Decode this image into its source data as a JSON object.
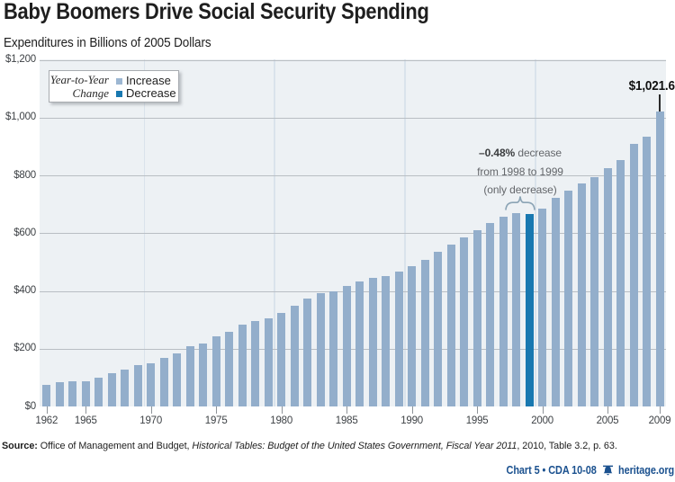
{
  "header": {
    "title": "Baby Boomers Drive Social Security Spending",
    "subtitle": "Expenditures in Billions of 2005 Dollars"
  },
  "legend": {
    "title_line1": "Year-to-Year",
    "title_line2": "Change",
    "items": [
      {
        "label": "Increase",
        "color": "#9db7d2"
      },
      {
        "label": "Decrease",
        "color": "#1878b0"
      }
    ]
  },
  "annotation": {
    "bold_part": "–0.48%",
    "line1_rest": " decrease",
    "line2": "from 1998 to 1999",
    "line3": "(only decrease)"
  },
  "peak_callout": {
    "label": "$1,021.6",
    "year": 2009
  },
  "source": {
    "prefix": "Source:",
    "normal1": " Office of Management and Budget, ",
    "italic": "Historical Tables: Budget of the United States Government, Fiscal Year 2011",
    "normal2": ", 2010, Table 3.2, p. 63."
  },
  "footer": {
    "chart_number": "Chart 5 • CDA 10-08",
    "site": "heritage.org",
    "logo": "liberty-bell",
    "accent_color": "#1b518f"
  },
  "chart_data": {
    "type": "bar",
    "title": "Baby Boomers Drive Social Security Spending",
    "ylabel": "Expenditures in Billions of 2005 Dollars",
    "ylim": [
      0,
      1200
    ],
    "y_ticks": [
      {
        "value": 1200,
        "label": "$1,200"
      },
      {
        "value": 1000,
        "label": "$1,000"
      },
      {
        "value": 800,
        "label": "$800"
      },
      {
        "value": 600,
        "label": "$600"
      },
      {
        "value": 400,
        "label": "$400"
      },
      {
        "value": 200,
        "label": "$200"
      },
      {
        "value": 0,
        "label": "$0"
      }
    ],
    "x_ticks": [
      1962,
      1965,
      1970,
      1975,
      1980,
      1985,
      1990,
      1995,
      2000,
      2005,
      2009
    ],
    "decade_gridlines_after": [
      1969,
      1979,
      1989,
      1999
    ],
    "decrease_year": 1999,
    "bar_colors": {
      "increase": "#93aecb",
      "decrease": "#1878b0"
    },
    "categories": [
      1962,
      1963,
      1964,
      1965,
      1966,
      1967,
      1968,
      1969,
      1970,
      1971,
      1972,
      1973,
      1974,
      1975,
      1976,
      1977,
      1978,
      1979,
      1980,
      1981,
      1982,
      1983,
      1984,
      1985,
      1986,
      1987,
      1988,
      1989,
      1990,
      1991,
      1992,
      1993,
      1994,
      1995,
      1996,
      1997,
      1998,
      1999,
      2000,
      2001,
      2002,
      2003,
      2004,
      2005,
      2006,
      2007,
      2008,
      2009
    ],
    "values": [
      75.3,
      82.8,
      85.9,
      87.9,
      101.0,
      115.2,
      129.2,
      143.8,
      150.9,
      169.0,
      182.9,
      207.9,
      219.1,
      242.2,
      258.9,
      282.5,
      295.0,
      305.4,
      323.2,
      349.3,
      373.3,
      393.2,
      398.5,
      417.2,
      432.5,
      444.2,
      452.9,
      465.7,
      486.2,
      506.7,
      536.0,
      561.5,
      586.3,
      610.8,
      633.8,
      657.8,
      670.0,
      666.8,
      686.4,
      721.0,
      747.3,
      773.2,
      794.1,
      825.5,
      854.3,
      908.0,
      934.8,
      1021.6
    ]
  }
}
